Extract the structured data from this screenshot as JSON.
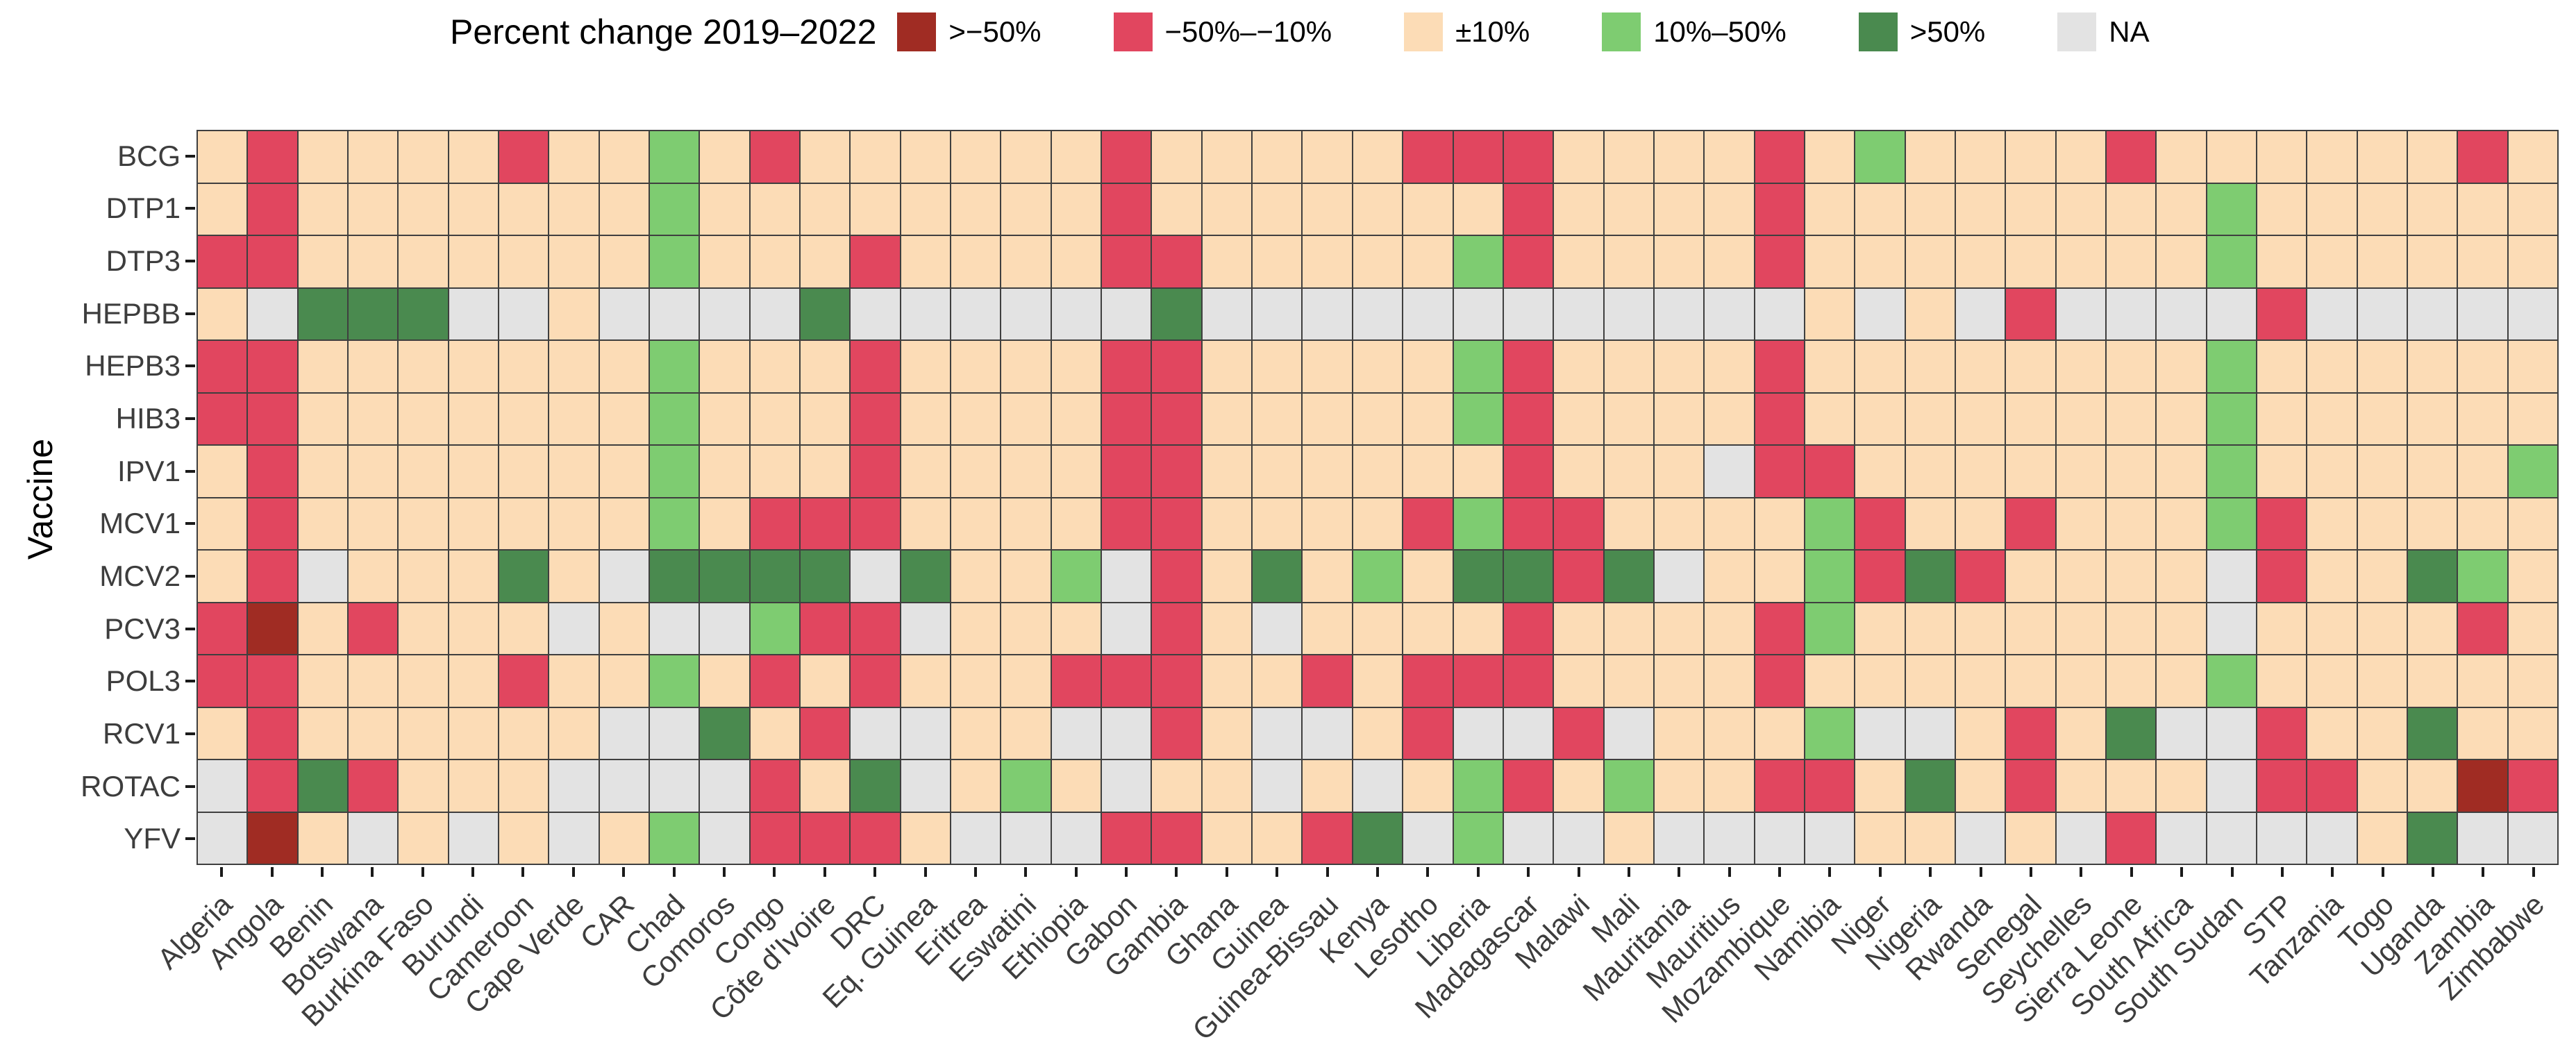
{
  "chart_data": {
    "type": "heatmap",
    "ylabel": "Vaccine",
    "xlabel": "",
    "legend": {
      "title": "Percent change 2019–2022",
      "position": "top",
      "entries": [
        {
          "code": "D",
          "label": ">−50%",
          "color": "#A02C23"
        },
        {
          "code": "R",
          "label": "−50%–−10%",
          "color": "#E1465F"
        },
        {
          "code": "P",
          "label": "±10%",
          "color": "#FCDCB6"
        },
        {
          "code": "G",
          "label": "10%–50%",
          "color": "#7ECC71"
        },
        {
          "code": "F",
          "label": ">50%",
          "color": "#4A8A4F"
        },
        {
          "code": "N",
          "label": "NA",
          "color": "#E3E3E3"
        }
      ]
    },
    "rows": [
      "BCG",
      "DTP1",
      "DTP3",
      "HEPBB",
      "HEPB3",
      "HIB3",
      "IPV1",
      "MCV1",
      "MCV2",
      "PCV3",
      "POL3",
      "RCV1",
      "ROTAC",
      "YFV"
    ],
    "columns": [
      "Algeria",
      "Angola",
      "Benin",
      "Botswana",
      "Burkina Faso",
      "Burundi",
      "Cameroon",
      "Cape Verde",
      "CAR",
      "Chad",
      "Comoros",
      "Congo",
      "Côte d'Ivoire",
      "DRC",
      "Eq. Guinea",
      "Eritrea",
      "Eswatini",
      "Ethiopia",
      "Gabon",
      "Gambia",
      "Ghana",
      "Guinea",
      "Guinea-Bissau",
      "Kenya",
      "Lesotho",
      "Liberia",
      "Madagascar",
      "Malawi",
      "Mali",
      "Mauritania",
      "Mauritius",
      "Mozambique",
      "Namibia",
      "Niger",
      "Nigeria",
      "Rwanda",
      "Senegal",
      "Seychelles",
      "Sierra Leone",
      "South Africa",
      "South Sudan",
      "STP",
      "Tanzania",
      "Togo",
      "Uganda",
      "Zambia",
      "Zimbabwe"
    ],
    "values": [
      "PRPPPPRPPGPRPPPPPPRPPPPPRRRPPPPRPGPPPPRPPPPPPRP",
      "PRPPPPPPPGPPPPPPPPRPPPPPPPRPPPPRPPPPPPPPGPPPPPP",
      "RRPPPPPPPGPPPRPPPPRRPPPPPGRPPPPRPPPPPPPPGPPPPPP",
      "PNFFFNNPNNNNFNNNNNNFNNNNNNNNNNNNPNPNRNNNNRNNNNN",
      "RRPPPPPPPGPPPRPPPPRRPPPPPGRPPPPRPPPPPPPPGPPPPPP",
      "RRPPPPPPPGPPPRPPPPRRPPPPPGRPPPPRPPPPPPPPGPPPPPP",
      "PRPPPPPPPGPPPRPPPPRRPPPPPPRPPPNRRPPPPPPPGPPPPPG",
      "PRPPPPPPPGPRRRPPPPRRPPPPRGRRPPPPGRPPRPPPGRPPPPP",
      "PRNPPPFPNFFFFNFPPGNRPFPGPFFRFNPPGRFRPPPPNRPPFGP",
      "RDPRPPPNPNNGRRNPPPNRPNPPPPRPPPPRGPPPPPPPNPPPPRP",
      "RRPPPPRPPGPRPRPPPRRRPPRPRRRPPPPRPPPPPPPPGPPPPPP",
      "PRPPPPPPNNFPRNNPPNNRPNNPRNNRNPPPGNNPRPFNNRPPFPP",
      "NRFRPPPNNNNRPFNPGPNPPNPNPGRPGPPRRPFPRPPPNRRPPDR",
      "NDPNPNPNPGNRRRPNNNRRPPRFNGNNPNNNNPPNPNRNNNNPFNN"
    ],
    "grid_line_color": "#3f3f3f",
    "background_color": "#ffffff"
  }
}
